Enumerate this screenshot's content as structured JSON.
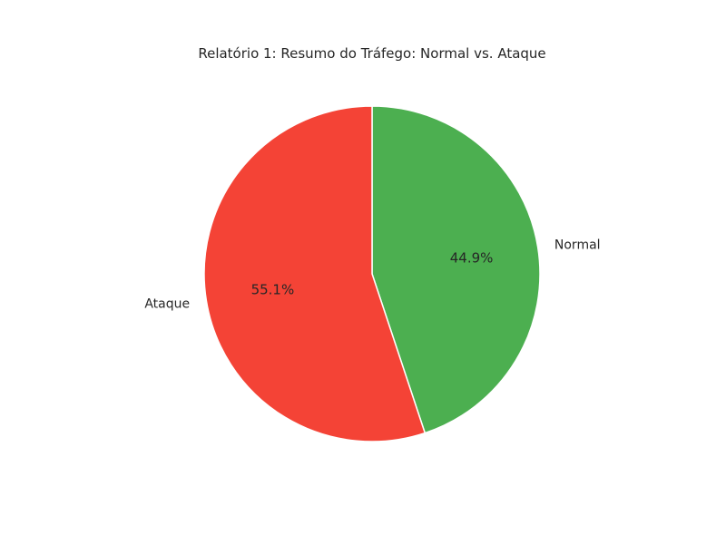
{
  "chart_data": {
    "type": "pie",
    "title": "Relatório 1: Resumo do Tráfego: Normal vs. Ataque",
    "start_angle_deg": 90,
    "direction": "clockwise",
    "legend": "none",
    "slices": [
      {
        "label": "Normal",
        "value": 44.9,
        "pct_label": "44.9%",
        "color": "#4caf50"
      },
      {
        "label": "Ataque",
        "value": 55.1,
        "pct_label": "55.1%",
        "color": "#f44336"
      }
    ]
  }
}
